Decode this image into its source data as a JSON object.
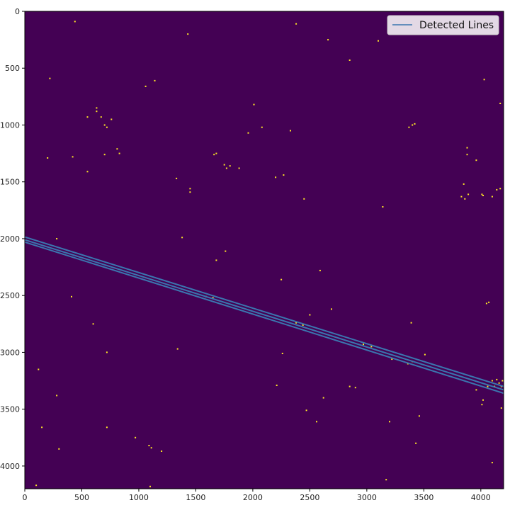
{
  "chart_data": {
    "type": "line",
    "title": "",
    "xlabel": "",
    "ylabel": "",
    "xlim": [
      0,
      4200
    ],
    "ylim": [
      4200,
      0
    ],
    "y_inverted": true,
    "grid": false,
    "background_color": "#440154",
    "point_color": "#fde725",
    "line_color": "#3b75af",
    "x_ticks": [
      0,
      500,
      1000,
      1500,
      2000,
      2500,
      3000,
      3500,
      4000
    ],
    "y_ticks": [
      0,
      500,
      1000,
      1500,
      2000,
      2500,
      3000,
      3500,
      4000
    ],
    "legend": {
      "position": "upper right",
      "entries": [
        "Detected Lines"
      ]
    },
    "series": [
      {
        "name": "Detected Lines",
        "x": [
          0,
          4200
        ],
        "y": [
          1985,
          3300
        ]
      },
      {
        "name": "",
        "x": [
          0,
          4200
        ],
        "y": [
          2010,
          3330
        ]
      },
      {
        "name": "",
        "x": [
          0,
          4200
        ],
        "y": [
          2030,
          3360
        ]
      }
    ],
    "bright_points": [
      [
        440,
        90
      ],
      [
        2380,
        110
      ],
      [
        1430,
        200
      ],
      [
        2660,
        250
      ],
      [
        3100,
        260
      ],
      [
        2850,
        430
      ],
      [
        4030,
        600
      ],
      [
        220,
        590
      ],
      [
        1140,
        610
      ],
      [
        1060,
        660
      ],
      [
        4170,
        810
      ],
      [
        630,
        850
      ],
      [
        630,
        880
      ],
      [
        550,
        930
      ],
      [
        670,
        930
      ],
      [
        700,
        1000
      ],
      [
        720,
        1020
      ],
      [
        760,
        950
      ],
      [
        2010,
        820
      ],
      [
        1960,
        1070
      ],
      [
        2080,
        1020
      ],
      [
        2330,
        1050
      ],
      [
        3370,
        1020
      ],
      [
        3400,
        1000
      ],
      [
        3420,
        990
      ],
      [
        810,
        1210
      ],
      [
        830,
        1250
      ],
      [
        700,
        1260
      ],
      [
        1660,
        1260
      ],
      [
        1680,
        1250
      ],
      [
        1750,
        1350
      ],
      [
        1770,
        1380
      ],
      [
        1800,
        1360
      ],
      [
        1880,
        1380
      ],
      [
        2270,
        1440
      ],
      [
        3880,
        1200
      ],
      [
        3880,
        1260
      ],
      [
        3960,
        1310
      ],
      [
        200,
        1290
      ],
      [
        420,
        1280
      ],
      [
        550,
        1410
      ],
      [
        1450,
        1560
      ],
      [
        1450,
        1590
      ],
      [
        1330,
        1470
      ],
      [
        2200,
        1460
      ],
      [
        3830,
        1630
      ],
      [
        3860,
        1650
      ],
      [
        3890,
        1610
      ],
      [
        4010,
        1610
      ],
      [
        4020,
        1620
      ],
      [
        4100,
        1630
      ],
      [
        4140,
        1570
      ],
      [
        4170,
        1560
      ],
      [
        3850,
        1520
      ],
      [
        2450,
        1650
      ],
      [
        3140,
        1720
      ],
      [
        280,
        2000
      ],
      [
        1380,
        1990
      ],
      [
        1760,
        2110
      ],
      [
        1680,
        2190
      ],
      [
        2590,
        2280
      ],
      [
        410,
        2510
      ],
      [
        1590,
        2510
      ],
      [
        1650,
        2520
      ],
      [
        2250,
        2360
      ],
      [
        4050,
        2570
      ],
      [
        4070,
        2560
      ],
      [
        2500,
        2670
      ],
      [
        2690,
        2620
      ],
      [
        600,
        2750
      ],
      [
        2380,
        2740
      ],
      [
        3390,
        2740
      ],
      [
        2440,
        2760
      ],
      [
        720,
        3000
      ],
      [
        1340,
        2970
      ],
      [
        2260,
        3010
      ],
      [
        3220,
        3060
      ],
      [
        3360,
        3100
      ],
      [
        3400,
        3080
      ],
      [
        3510,
        3020
      ],
      [
        3040,
        2950
      ],
      [
        2970,
        2930
      ],
      [
        120,
        3150
      ],
      [
        4100,
        3250
      ],
      [
        4140,
        3240
      ],
      [
        4160,
        3270
      ],
      [
        4190,
        3250
      ],
      [
        4060,
        3300
      ],
      [
        4120,
        3300
      ],
      [
        4180,
        3300
      ],
      [
        3960,
        3330
      ],
      [
        280,
        3380
      ],
      [
        2850,
        3300
      ],
      [
        2900,
        3310
      ],
      [
        2210,
        3290
      ],
      [
        2620,
        3400
      ],
      [
        4020,
        3420
      ],
      [
        4010,
        3460
      ],
      [
        4180,
        3490
      ],
      [
        2470,
        3510
      ],
      [
        3460,
        3560
      ],
      [
        3200,
        3610
      ],
      [
        2560,
        3610
      ],
      [
        150,
        3660
      ],
      [
        720,
        3660
      ],
      [
        970,
        3750
      ],
      [
        1090,
        3820
      ],
      [
        1110,
        3840
      ],
      [
        1200,
        3870
      ],
      [
        300,
        3850
      ],
      [
        3430,
        3800
      ],
      [
        3170,
        4120
      ],
      [
        4100,
        3970
      ],
      [
        1100,
        4180
      ],
      [
        100,
        4170
      ]
    ]
  }
}
